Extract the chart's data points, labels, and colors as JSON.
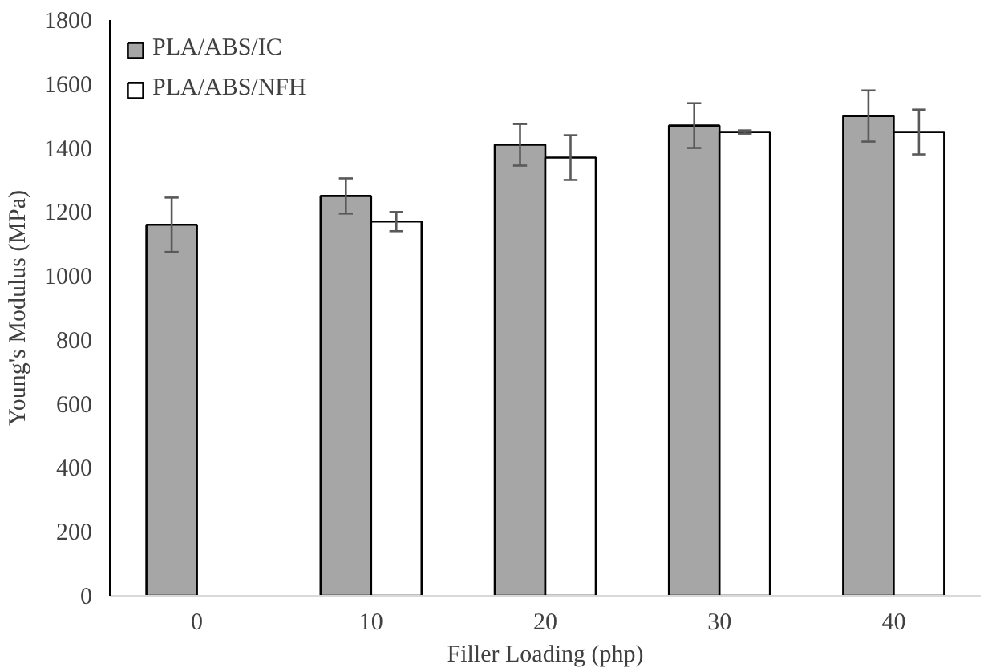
{
  "chart_data": {
    "type": "bar",
    "xlabel": "Filler Loading (php)",
    "ylabel": "Young's Modulus (MPa)",
    "categories": [
      "0",
      "10",
      "20",
      "30",
      "40"
    ],
    "series": [
      {
        "name": "PLA/ABS/IC",
        "color": "#a6a6a6",
        "values": [
          1160,
          1250,
          1410,
          1470,
          1500
        ],
        "errors": [
          85,
          55,
          65,
          70,
          80
        ]
      },
      {
        "name": "PLA/ABS/NFH",
        "color": "#ffffff",
        "values": [
          null,
          1170,
          1370,
          1450,
          1450
        ],
        "errors": [
          null,
          30,
          70,
          5,
          70
        ]
      }
    ],
    "ylim": [
      0,
      1800
    ],
    "yticks": [
      0,
      200,
      400,
      600,
      800,
      1000,
      1200,
      1400,
      1600,
      1800
    ],
    "grid": false,
    "legend": "top left"
  }
}
